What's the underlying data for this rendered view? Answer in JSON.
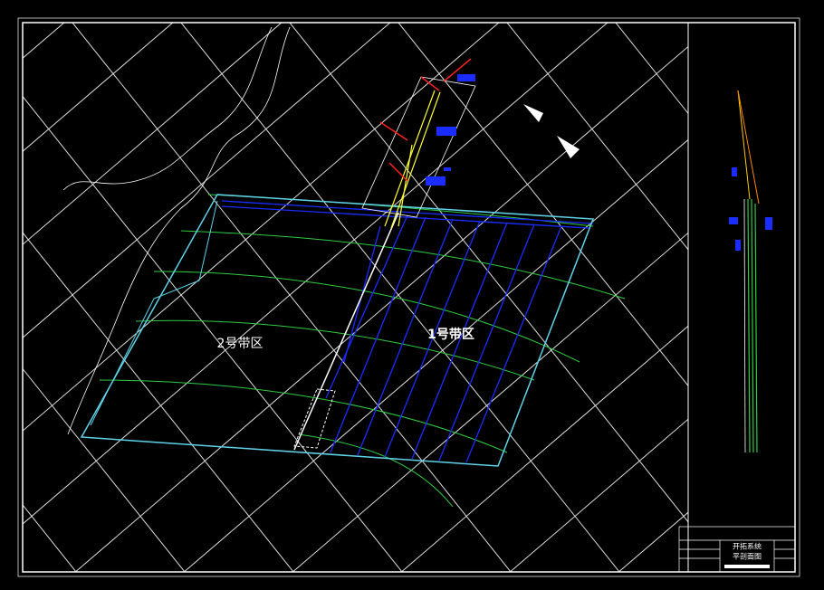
{
  "labels": {
    "zone2": "2号带区",
    "zone1": "1号带区"
  },
  "title_block": {
    "title": "开拓系统",
    "subtitle": "平剖面图"
  }
}
